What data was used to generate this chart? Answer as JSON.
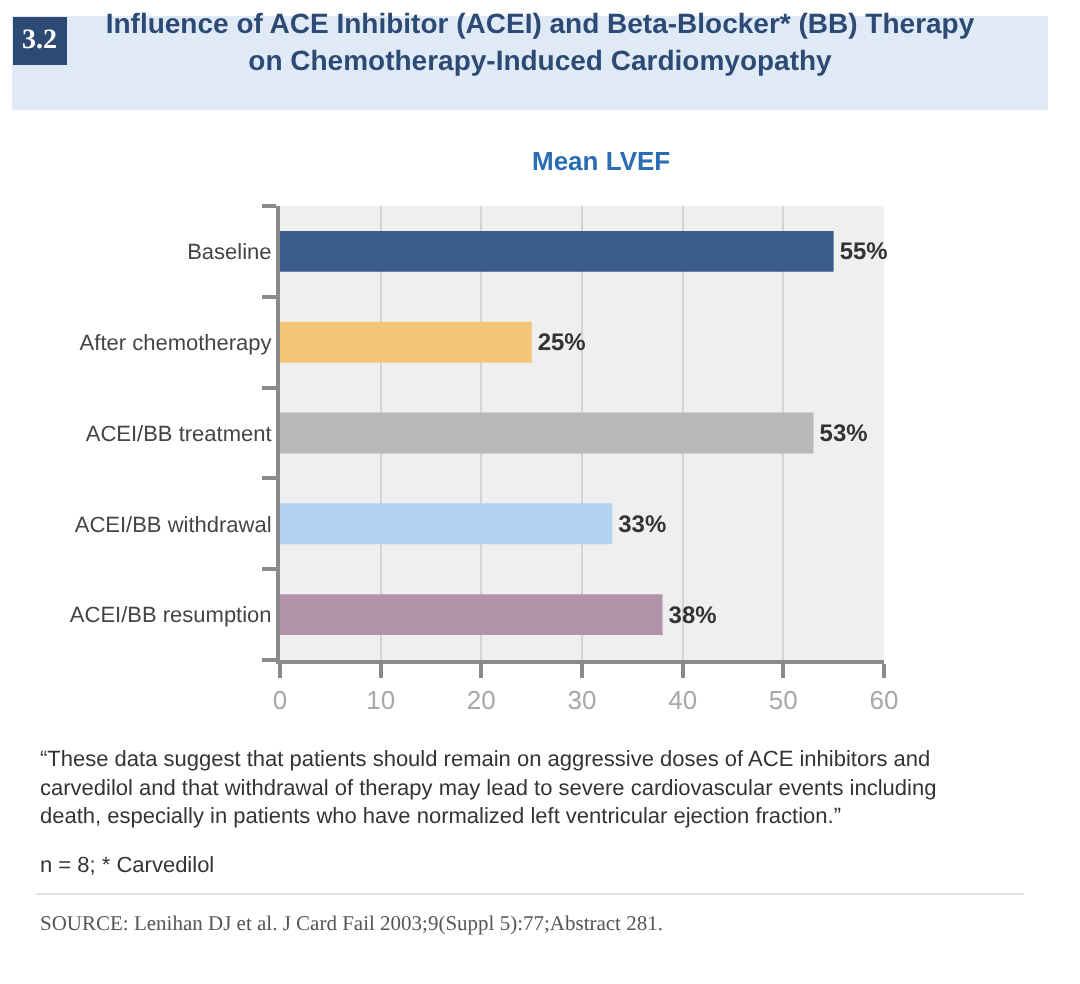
{
  "chart_data": {
    "type": "bar",
    "orientation": "horizontal",
    "title": "Influence of ACE Inhibitor (ACEI) and Beta-Blocker* (BB) Therapy on Chemotherapy-Induced Cardiomyopathy",
    "subtitle": "Mean LVEF",
    "categories": [
      "Baseline",
      "After chemotherapy",
      "ACEI/BB treatment",
      "ACEI/BB withdrawal",
      "ACEI/BB resumption"
    ],
    "values": [
      55,
      25,
      53,
      33,
      38
    ],
    "colors": [
      "#3d5c8e",
      "#f3c574",
      "#b8b8b8",
      "#b3d3f1",
      "#b393aa"
    ],
    "value_labels": [
      "55%",
      "25%",
      "53%",
      "33%",
      "38%"
    ],
    "xlim": [
      0,
      60
    ],
    "xticks": [
      0,
      10,
      20,
      30,
      40,
      50,
      60
    ],
    "grid": "x",
    "annotations": [
      "3.2",
      "“These data suggest that patients should remain on aggressive doses of ACE inhibitors and carvedilol and that withdrawal of therapy may lead to severe cardiovascular events including death, especially in patients who have normalized left ventricular ejection fraction.”",
      "n = 8; * Carvedilol",
      "SOURCE: Lenihan DJ et al. J Card Fail 2003;9(Suppl 5):77;Abstract 281."
    ]
  }
}
